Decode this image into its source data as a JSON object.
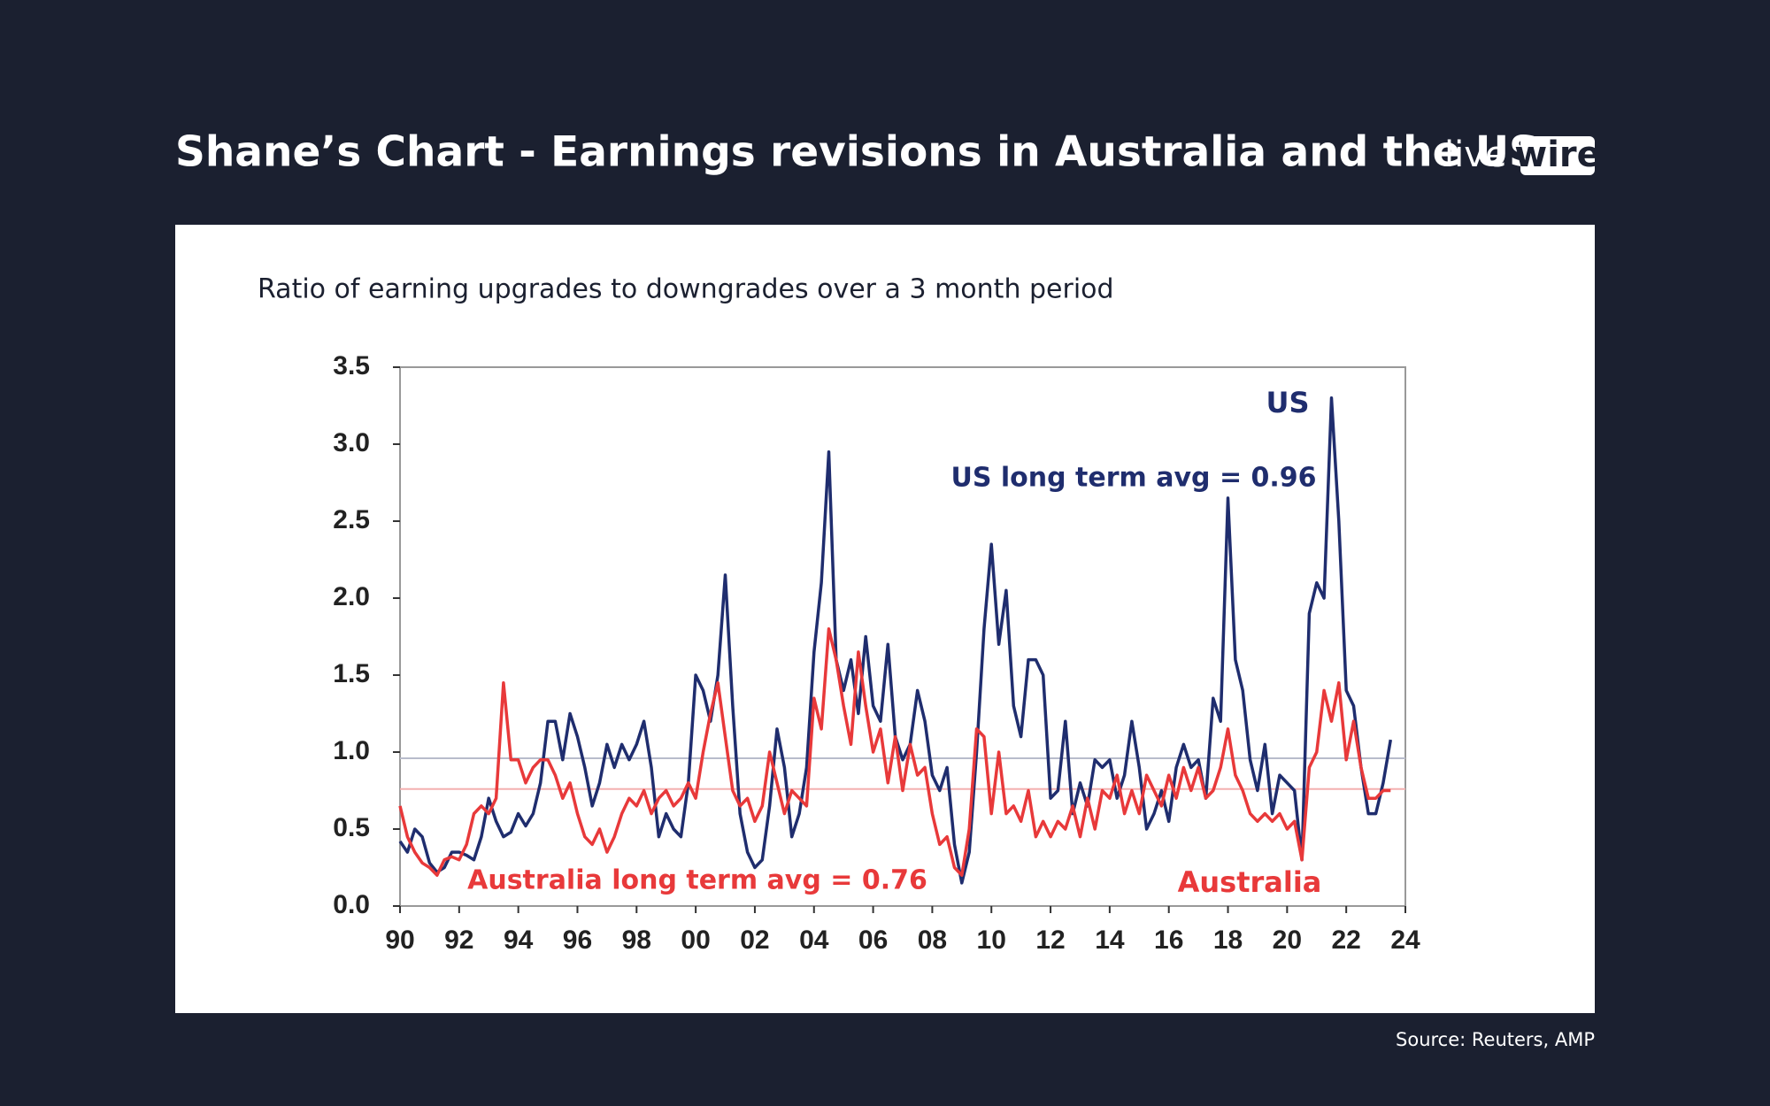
{
  "brand": {
    "light": "live",
    "boxed": "wire"
  },
  "chart_data": {
    "type": "line",
    "title": "Shane’s Chart - Earnings revisions in Australia and the US",
    "subtitle": "Ratio of earning upgrades to downgrades over a 3 month period",
    "source": "Source: Reuters, AMP",
    "x": [
      1990,
      1990.25,
      1990.5,
      1990.75,
      1991,
      1991.25,
      1991.5,
      1991.75,
      1992,
      1992.25,
      1992.5,
      1992.75,
      1993,
      1993.25,
      1993.5,
      1993.75,
      1994,
      1994.25,
      1994.5,
      1994.75,
      1995,
      1995.25,
      1995.5,
      1995.75,
      1996,
      1996.25,
      1996.5,
      1996.75,
      1997,
      1997.25,
      1997.5,
      1997.75,
      1998,
      1998.25,
      1998.5,
      1998.75,
      1999,
      1999.25,
      1999.5,
      1999.75,
      2000,
      2000.25,
      2000.5,
      2000.75,
      2001,
      2001.25,
      2001.5,
      2001.75,
      2002,
      2002.25,
      2002.5,
      2002.75,
      2003,
      2003.25,
      2003.5,
      2003.75,
      2004,
      2004.25,
      2004.5,
      2004.75,
      2005,
      2005.25,
      2005.5,
      2005.75,
      2006,
      2006.25,
      2006.5,
      2006.75,
      2007,
      2007.25,
      2007.5,
      2007.75,
      2008,
      2008.25,
      2008.5,
      2008.75,
      2009,
      2009.25,
      2009.5,
      2009.75,
      2010,
      2010.25,
      2010.5,
      2010.75,
      2011,
      2011.25,
      2011.5,
      2011.75,
      2012,
      2012.25,
      2012.5,
      2012.75,
      2013,
      2013.25,
      2013.5,
      2013.75,
      2014,
      2014.25,
      2014.5,
      2014.75,
      2015,
      2015.25,
      2015.5,
      2015.75,
      2016,
      2016.25,
      2016.5,
      2016.75,
      2017,
      2017.25,
      2017.5,
      2017.75,
      2018,
      2018.25,
      2018.5,
      2018.75,
      2019,
      2019.25,
      2019.5,
      2019.75,
      2020,
      2020.25,
      2020.5,
      2020.75,
      2021,
      2021.25,
      2021.5,
      2021.75,
      2022,
      2022.25,
      2022.5,
      2022.75,
      2023,
      2023.25,
      2023.5
    ],
    "series": [
      {
        "name": "US",
        "color": "#1f2d6e",
        "values": [
          0.42,
          0.35,
          0.5,
          0.45,
          0.28,
          0.22,
          0.25,
          0.35,
          0.35,
          0.33,
          0.3,
          0.45,
          0.7,
          0.55,
          0.45,
          0.48,
          0.6,
          0.52,
          0.6,
          0.8,
          1.2,
          1.2,
          0.95,
          1.25,
          1.1,
          0.9,
          0.65,
          0.8,
          1.05,
          0.9,
          1.05,
          0.95,
          1.05,
          1.2,
          0.9,
          0.45,
          0.6,
          0.5,
          0.45,
          0.8,
          1.5,
          1.4,
          1.2,
          1.5,
          2.15,
          1.3,
          0.6,
          0.35,
          0.25,
          0.3,
          0.65,
          1.15,
          0.9,
          0.45,
          0.6,
          0.9,
          1.65,
          2.1,
          2.95,
          1.6,
          1.4,
          1.6,
          1.25,
          1.75,
          1.3,
          1.2,
          1.7,
          1.1,
          0.95,
          1.05,
          1.4,
          1.2,
          0.85,
          0.75,
          0.9,
          0.4,
          0.15,
          0.35,
          1.0,
          1.8,
          2.35,
          1.7,
          2.05,
          1.3,
          1.1,
          1.6,
          1.6,
          1.5,
          0.7,
          0.75,
          1.2,
          0.6,
          0.8,
          0.65,
          0.95,
          0.9,
          0.95,
          0.7,
          0.85,
          1.2,
          0.9,
          0.5,
          0.6,
          0.75,
          0.55,
          0.9,
          1.05,
          0.9,
          0.95,
          0.7,
          1.35,
          1.2,
          2.65,
          1.6,
          1.4,
          0.95,
          0.75,
          1.05,
          0.6,
          0.85,
          0.8,
          0.75,
          0.3,
          1.9,
          2.1,
          2.0,
          3.3,
          2.5,
          1.4,
          1.3,
          0.9,
          0.6,
          0.6,
          0.8,
          1.08
        ]
      },
      {
        "name": "Australia",
        "color": "#e8393a",
        "values": [
          0.65,
          0.45,
          0.35,
          0.28,
          0.25,
          0.2,
          0.3,
          0.32,
          0.3,
          0.4,
          0.6,
          0.65,
          0.6,
          0.7,
          1.45,
          0.95,
          0.95,
          0.8,
          0.9,
          0.95,
          0.95,
          0.85,
          0.7,
          0.8,
          0.6,
          0.45,
          0.4,
          0.5,
          0.35,
          0.45,
          0.6,
          0.7,
          0.65,
          0.75,
          0.6,
          0.7,
          0.75,
          0.65,
          0.7,
          0.8,
          0.7,
          1.0,
          1.25,
          1.45,
          1.1,
          0.75,
          0.65,
          0.7,
          0.55,
          0.65,
          1.0,
          0.8,
          0.6,
          0.75,
          0.7,
          0.65,
          1.35,
          1.15,
          1.8,
          1.6,
          1.3,
          1.05,
          1.65,
          1.3,
          1.0,
          1.15,
          0.8,
          1.1,
          0.75,
          1.05,
          0.85,
          0.9,
          0.6,
          0.4,
          0.45,
          0.25,
          0.2,
          0.5,
          1.15,
          1.1,
          0.6,
          1.0,
          0.6,
          0.65,
          0.55,
          0.75,
          0.45,
          0.55,
          0.45,
          0.55,
          0.5,
          0.65,
          0.45,
          0.7,
          0.5,
          0.75,
          0.7,
          0.85,
          0.6,
          0.75,
          0.6,
          0.85,
          0.75,
          0.65,
          0.85,
          0.7,
          0.9,
          0.75,
          0.9,
          0.7,
          0.75,
          0.9,
          1.15,
          0.85,
          0.75,
          0.6,
          0.55,
          0.6,
          0.55,
          0.6,
          0.5,
          0.55,
          0.3,
          0.9,
          1.0,
          1.4,
          1.2,
          1.45,
          0.95,
          1.2,
          0.9,
          0.7,
          0.7,
          0.75,
          0.75
        ]
      }
    ],
    "reference_lines": [
      {
        "value": 0.96,
        "label": "US long term avg = 0.96",
        "line_color": "#b8bccb",
        "text_color": "#1f2d6e"
      },
      {
        "value": 0.76,
        "label": "Australia long term avg = 0.76",
        "line_color": "#f4b0b0",
        "text_color": "#e8393a"
      }
    ],
    "xlim": [
      1990,
      2024
    ],
    "xticks": [
      {
        "value": 1990,
        "label": "90"
      },
      {
        "value": 1992,
        "label": "92"
      },
      {
        "value": 1994,
        "label": "94"
      },
      {
        "value": 1996,
        "label": "96"
      },
      {
        "value": 1998,
        "label": "98"
      },
      {
        "value": 2000,
        "label": "00"
      },
      {
        "value": 2002,
        "label": "02"
      },
      {
        "value": 2004,
        "label": "04"
      },
      {
        "value": 2006,
        "label": "06"
      },
      {
        "value": 2008,
        "label": "08"
      },
      {
        "value": 2010,
        "label": "10"
      },
      {
        "value": 2012,
        "label": "12"
      },
      {
        "value": 2014,
        "label": "14"
      },
      {
        "value": 2016,
        "label": "16"
      },
      {
        "value": 2018,
        "label": "18"
      },
      {
        "value": 2020,
        "label": "20"
      },
      {
        "value": 2022,
        "label": "22"
      },
      {
        "value": 2024,
        "label": "24"
      }
    ],
    "ylim": [
      0,
      3.5
    ],
    "yticks": [
      {
        "value": 0,
        "label": "0.0"
      },
      0.5,
      {
        "value": 1,
        "label": "1.0"
      },
      1.5,
      {
        "value": 2,
        "label": "2.0"
      },
      2.5,
      {
        "value": 3,
        "label": "3.0"
      },
      3.5
    ]
  }
}
